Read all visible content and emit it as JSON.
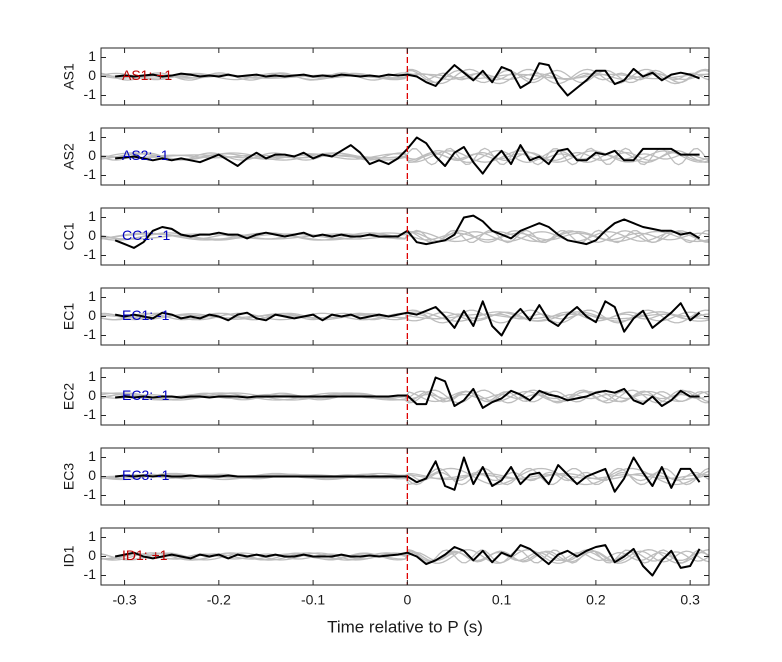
{
  "chart_data": {
    "type": "line",
    "xlabel": "Time relative to P (s)",
    "xlim": [
      -0.325,
      0.32
    ],
    "ylim": [
      -1.5,
      1.5
    ],
    "xticks": [
      -0.3,
      -0.2,
      -0.1,
      0,
      0.1,
      0.2,
      0.3
    ],
    "xtick_labels": [
      "-0.3",
      "-0.2",
      "-0.1",
      "0",
      "0.1",
      "0.2",
      "0.3"
    ],
    "yticks": [
      -1,
      0,
      1
    ],
    "ytick_labels": [
      "-1",
      "0",
      "1"
    ],
    "marker_line_x": 0,
    "colors": {
      "main": "#000000",
      "background": "#bdbdbd",
      "positive": "#c00000",
      "negative": "#0000c0",
      "marker": "#e00000"
    },
    "panels": [
      {
        "ylabel": "AS1",
        "annotation": "AS1: +1",
        "polarity": "positive",
        "x": [
          -0.31,
          -0.3,
          -0.29,
          -0.28,
          -0.27,
          -0.26,
          -0.25,
          -0.24,
          -0.23,
          -0.22,
          -0.21,
          -0.2,
          -0.19,
          -0.18,
          -0.17,
          -0.16,
          -0.15,
          -0.14,
          -0.13,
          -0.12,
          -0.11,
          -0.1,
          -0.09,
          -0.08,
          -0.07,
          -0.06,
          -0.05,
          -0.04,
          -0.03,
          -0.02,
          -0.01,
          0.0,
          0.01,
          0.02,
          0.03,
          0.04,
          0.05,
          0.06,
          0.07,
          0.08,
          0.09,
          0.1,
          0.11,
          0.12,
          0.13,
          0.14,
          0.15,
          0.16,
          0.17,
          0.18,
          0.19,
          0.2,
          0.21,
          0.22,
          0.23,
          0.24,
          0.25,
          0.26,
          0.27,
          0.28,
          0.29,
          0.3,
          0.31
        ],
        "y": [
          0.0,
          0.05,
          0.0,
          0.05,
          0.1,
          0.0,
          0.05,
          0.15,
          0.1,
          0.0,
          0.05,
          0.0,
          0.1,
          0.0,
          0.05,
          0.1,
          0.0,
          0.05,
          0.0,
          0.05,
          0.1,
          0.0,
          0.05,
          0.0,
          0.1,
          0.05,
          0.0,
          0.05,
          0.0,
          0.1,
          0.05,
          0.1,
          0.0,
          -0.3,
          -0.5,
          0.1,
          0.6,
          0.2,
          -0.2,
          0.3,
          -0.3,
          0.5,
          0.3,
          -0.6,
          -0.3,
          0.7,
          0.6,
          -0.4,
          -1.0,
          -0.6,
          -0.2,
          0.3,
          0.3,
          -0.4,
          -0.2,
          0.4,
          0.0,
          0.2,
          -0.2,
          0.1,
          0.2,
          0.1,
          -0.1
        ]
      },
      {
        "ylabel": "AS2",
        "annotation": "AS2: -1",
        "polarity": "negative",
        "x": [
          -0.31,
          -0.3,
          -0.29,
          -0.28,
          -0.27,
          -0.26,
          -0.25,
          -0.24,
          -0.23,
          -0.22,
          -0.21,
          -0.2,
          -0.19,
          -0.18,
          -0.17,
          -0.16,
          -0.15,
          -0.14,
          -0.13,
          -0.12,
          -0.11,
          -0.1,
          -0.09,
          -0.08,
          -0.07,
          -0.06,
          -0.05,
          -0.04,
          -0.03,
          -0.02,
          -0.01,
          0.0,
          0.01,
          0.02,
          0.03,
          0.04,
          0.05,
          0.06,
          0.07,
          0.08,
          0.09,
          0.1,
          0.11,
          0.12,
          0.13,
          0.14,
          0.15,
          0.16,
          0.17,
          0.18,
          0.19,
          0.2,
          0.21,
          0.22,
          0.23,
          0.24,
          0.25,
          0.26,
          0.27,
          0.28,
          0.29,
          0.3,
          0.31
        ],
        "y": [
          -0.1,
          -0.05,
          0.0,
          -0.1,
          -0.2,
          -0.1,
          -0.2,
          -0.1,
          -0.2,
          -0.3,
          -0.1,
          0.1,
          -0.2,
          -0.5,
          -0.1,
          0.2,
          -0.1,
          0.1,
          0.1,
          0.0,
          0.2,
          -0.1,
          0.1,
          0.0,
          0.3,
          0.6,
          0.2,
          -0.4,
          -0.2,
          -0.4,
          -0.1,
          0.4,
          1.0,
          0.7,
          0.0,
          -0.5,
          0.2,
          0.5,
          -0.3,
          -0.9,
          -0.2,
          0.3,
          -0.4,
          0.6,
          -0.2,
          0.0,
          -0.4,
          0.3,
          0.4,
          -0.2,
          -0.2,
          0.2,
          0.1,
          0.3,
          -0.2,
          -0.2,
          0.4,
          0.4,
          0.4,
          0.4,
          0.1,
          0.1,
          0.1
        ]
      },
      {
        "ylabel": "CC1",
        "annotation": "CC1: -1",
        "polarity": "negative",
        "x": [
          -0.31,
          -0.3,
          -0.29,
          -0.28,
          -0.27,
          -0.26,
          -0.25,
          -0.24,
          -0.23,
          -0.22,
          -0.21,
          -0.2,
          -0.19,
          -0.18,
          -0.17,
          -0.16,
          -0.15,
          -0.14,
          -0.13,
          -0.12,
          -0.11,
          -0.1,
          -0.09,
          -0.08,
          -0.07,
          -0.06,
          -0.05,
          -0.04,
          -0.03,
          -0.02,
          -0.01,
          0.0,
          0.01,
          0.02,
          0.03,
          0.04,
          0.05,
          0.06,
          0.07,
          0.08,
          0.09,
          0.1,
          0.11,
          0.12,
          0.13,
          0.14,
          0.15,
          0.16,
          0.17,
          0.18,
          0.19,
          0.2,
          0.21,
          0.22,
          0.23,
          0.24,
          0.25,
          0.26,
          0.27,
          0.28,
          0.29,
          0.3,
          0.31
        ],
        "y": [
          -0.2,
          -0.4,
          -0.6,
          -0.3,
          0.3,
          0.5,
          0.4,
          0.1,
          0.0,
          0.1,
          0.1,
          0.2,
          0.1,
          0.1,
          -0.1,
          0.1,
          0.2,
          0.1,
          0.0,
          0.1,
          0.2,
          0.0,
          0.1,
          0.0,
          0.1,
          0.0,
          0.0,
          0.1,
          0.0,
          0.0,
          0.0,
          0.3,
          -0.3,
          -0.4,
          -0.3,
          -0.2,
          0.1,
          1.0,
          1.1,
          0.8,
          0.3,
          0.1,
          -0.1,
          0.3,
          0.5,
          0.7,
          0.5,
          0.1,
          -0.2,
          -0.3,
          -0.4,
          -0.2,
          0.3,
          0.7,
          0.9,
          0.7,
          0.5,
          0.4,
          0.3,
          0.3,
          0.1,
          0.2,
          -0.1
        ]
      },
      {
        "ylabel": "EC1",
        "annotation": "EC1: -1",
        "polarity": "negative",
        "x": [
          -0.31,
          -0.3,
          -0.29,
          -0.28,
          -0.27,
          -0.26,
          -0.25,
          -0.24,
          -0.23,
          -0.22,
          -0.21,
          -0.2,
          -0.19,
          -0.18,
          -0.17,
          -0.16,
          -0.15,
          -0.14,
          -0.13,
          -0.12,
          -0.11,
          -0.1,
          -0.09,
          -0.08,
          -0.07,
          -0.06,
          -0.05,
          -0.04,
          -0.03,
          -0.02,
          -0.01,
          0.0,
          0.01,
          0.02,
          0.03,
          0.04,
          0.05,
          0.06,
          0.07,
          0.08,
          0.09,
          0.1,
          0.11,
          0.12,
          0.13,
          0.14,
          0.15,
          0.16,
          0.17,
          0.18,
          0.19,
          0.2,
          0.21,
          0.22,
          0.23,
          0.24,
          0.25,
          0.26,
          0.27,
          0.28,
          0.29,
          0.3,
          0.31
        ],
        "y": [
          0.1,
          0.0,
          0.1,
          0.0,
          -0.1,
          0.2,
          0.1,
          -0.1,
          0.0,
          -0.1,
          0.1,
          0.0,
          -0.2,
          0.1,
          0.2,
          -0.1,
          -0.2,
          0.1,
          0.0,
          -0.1,
          0.0,
          0.1,
          -0.2,
          0.1,
          0.0,
          0.1,
          -0.1,
          0.0,
          0.1,
          0.0,
          0.1,
          0.2,
          0.1,
          0.3,
          0.5,
          0.0,
          -0.6,
          0.3,
          -0.5,
          0.8,
          -0.5,
          -1.0,
          -0.1,
          0.4,
          -0.2,
          0.6,
          -0.2,
          -0.5,
          0.1,
          0.5,
          0.0,
          -0.3,
          0.8,
          0.5,
          -0.8,
          -0.1,
          0.3,
          -0.6,
          -0.2,
          0.2,
          0.7,
          -0.2,
          0.2
        ]
      },
      {
        "ylabel": "EC2",
        "annotation": "EC2: -1",
        "polarity": "negative",
        "x": [
          -0.31,
          -0.3,
          -0.29,
          -0.28,
          -0.27,
          -0.26,
          -0.25,
          -0.24,
          -0.23,
          -0.22,
          -0.21,
          -0.2,
          -0.19,
          -0.18,
          -0.17,
          -0.16,
          -0.15,
          -0.14,
          -0.13,
          -0.12,
          -0.11,
          -0.1,
          -0.09,
          -0.08,
          -0.07,
          -0.06,
          -0.05,
          -0.04,
          -0.03,
          -0.02,
          -0.01,
          0.0,
          0.01,
          0.02,
          0.03,
          0.04,
          0.05,
          0.06,
          0.07,
          0.08,
          0.09,
          0.1,
          0.11,
          0.12,
          0.13,
          0.14,
          0.15,
          0.16,
          0.17,
          0.18,
          0.19,
          0.2,
          0.21,
          0.22,
          0.23,
          0.24,
          0.25,
          0.26,
          0.27,
          0.28,
          0.29,
          0.3,
          0.31
        ],
        "y": [
          -0.05,
          0.0,
          -0.05,
          0.0,
          -0.05,
          0.0,
          0.0,
          -0.05,
          0.0,
          0.0,
          -0.05,
          0.0,
          0.0,
          0.0,
          -0.05,
          0.0,
          0.0,
          0.0,
          0.0,
          0.0,
          0.0,
          0.0,
          0.0,
          0.0,
          0.0,
          0.0,
          0.0,
          0.0,
          0.0,
          0.0,
          0.05,
          0.05,
          -0.4,
          -0.4,
          1.0,
          0.8,
          -0.5,
          -0.2,
          0.4,
          -0.6,
          -0.3,
          -0.1,
          0.3,
          0.1,
          -0.2,
          0.3,
          0.1,
          0.0,
          -0.2,
          -0.1,
          0.0,
          0.2,
          0.3,
          0.2,
          0.4,
          -0.2,
          -0.4,
          0.0,
          -0.5,
          -0.2,
          0.3,
          0.0,
          0.0
        ]
      },
      {
        "ylabel": "EC3",
        "annotation": "EC3: -1",
        "polarity": "negative",
        "x": [
          -0.31,
          -0.3,
          -0.29,
          -0.28,
          -0.27,
          -0.26,
          -0.25,
          -0.24,
          -0.23,
          -0.22,
          -0.21,
          -0.2,
          -0.19,
          -0.18,
          -0.17,
          -0.16,
          -0.15,
          -0.14,
          -0.13,
          -0.12,
          -0.11,
          -0.1,
          -0.09,
          -0.08,
          -0.07,
          -0.06,
          -0.05,
          -0.04,
          -0.03,
          -0.02,
          -0.01,
          0.0,
          0.01,
          0.02,
          0.03,
          0.04,
          0.05,
          0.06,
          0.07,
          0.08,
          0.09,
          0.1,
          0.11,
          0.12,
          0.13,
          0.14,
          0.15,
          0.16,
          0.17,
          0.18,
          0.19,
          0.2,
          0.21,
          0.22,
          0.23,
          0.24,
          0.25,
          0.26,
          0.27,
          0.28,
          0.29,
          0.3,
          0.31
        ],
        "y": [
          0.0,
          0.05,
          0.0,
          0.05,
          0.0,
          0.05,
          0.0,
          0.0,
          0.05,
          0.0,
          0.0,
          0.0,
          0.05,
          0.0,
          0.0,
          0.0,
          0.0,
          0.0,
          0.0,
          0.0,
          0.0,
          0.0,
          0.0,
          0.0,
          0.0,
          0.0,
          0.0,
          0.0,
          0.0,
          0.0,
          0.0,
          0.0,
          -0.3,
          -0.1,
          0.8,
          -0.5,
          -0.7,
          1.0,
          -0.4,
          0.5,
          -0.5,
          -0.2,
          0.5,
          -0.4,
          0.1,
          0.2,
          -0.4,
          0.6,
          0.1,
          -0.4,
          0.0,
          0.2,
          0.4,
          -0.8,
          -0.1,
          1.0,
          0.2,
          -0.5,
          0.5,
          -0.6,
          0.4,
          0.4,
          -0.3
        ]
      },
      {
        "ylabel": "ID1",
        "annotation": "ID1: +1",
        "polarity": "positive",
        "x": [
          -0.31,
          -0.3,
          -0.29,
          -0.28,
          -0.27,
          -0.26,
          -0.25,
          -0.24,
          -0.23,
          -0.22,
          -0.21,
          -0.2,
          -0.19,
          -0.18,
          -0.17,
          -0.16,
          -0.15,
          -0.14,
          -0.13,
          -0.12,
          -0.11,
          -0.1,
          -0.09,
          -0.08,
          -0.07,
          -0.06,
          -0.05,
          -0.04,
          -0.03,
          -0.02,
          -0.01,
          0.0,
          0.01,
          0.02,
          0.03,
          0.04,
          0.05,
          0.06,
          0.07,
          0.08,
          0.09,
          0.1,
          0.11,
          0.12,
          0.13,
          0.14,
          0.15,
          0.16,
          0.17,
          0.18,
          0.19,
          0.2,
          0.21,
          0.22,
          0.23,
          0.24,
          0.25,
          0.26,
          0.27,
          0.28,
          0.29,
          0.3,
          0.31
        ],
        "y": [
          0.0,
          0.1,
          0.2,
          0.0,
          -0.1,
          0.0,
          0.1,
          0.0,
          -0.1,
          0.1,
          0.0,
          0.1,
          -0.1,
          0.1,
          0.0,
          0.1,
          0.0,
          0.1,
          0.0,
          0.0,
          0.1,
          0.0,
          0.0,
          0.0,
          0.1,
          0.0,
          0.0,
          0.05,
          0.0,
          0.05,
          0.1,
          0.2,
          0.0,
          -0.4,
          -0.2,
          0.1,
          0.5,
          0.3,
          -0.2,
          0.3,
          -0.3,
          0.2,
          0.0,
          0.6,
          0.4,
          0.0,
          -0.4,
          0.1,
          0.3,
          0.0,
          0.3,
          0.5,
          0.6,
          -0.3,
          0.0,
          0.4,
          -0.5,
          -1.0,
          -0.2,
          0.3,
          -0.6,
          -0.5,
          0.4
        ]
      }
    ]
  }
}
